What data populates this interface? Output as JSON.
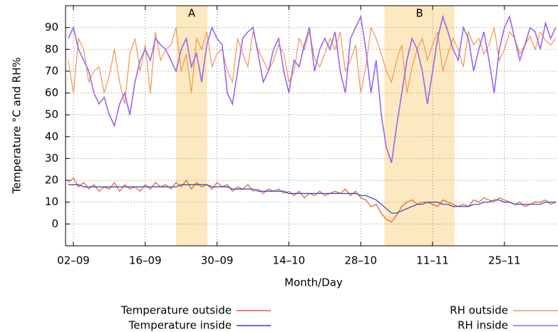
{
  "chart_data": {
    "type": "line",
    "xlabel": "Month/Day",
    "ylabel": "Temperature °C and RH%",
    "annotations": [
      "A",
      "B"
    ],
    "categories": [
      null,
      "02–09",
      null,
      null,
      null,
      null,
      null,
      null,
      null,
      null,
      null,
      null,
      null,
      null,
      null,
      "16–09",
      null,
      null,
      null,
      null,
      null,
      null,
      null,
      null,
      null,
      null,
      null,
      null,
      null,
      "30–09",
      null,
      null,
      null,
      null,
      null,
      null,
      null,
      null,
      null,
      null,
      null,
      null,
      null,
      "14–10",
      null,
      null,
      null,
      null,
      null,
      null,
      null,
      null,
      null,
      null,
      null,
      null,
      null,
      "28–10",
      null,
      null,
      null,
      null,
      null,
      null,
      null,
      null,
      null,
      null,
      null,
      null,
      null,
      "11–11",
      null,
      null,
      null,
      null,
      null,
      null,
      null,
      null,
      null,
      null,
      null,
      null,
      null,
      "25–11",
      null,
      null,
      null,
      null,
      null,
      null,
      null,
      null,
      null,
      null
    ],
    "ylim": [
      -10,
      100
    ],
    "yticks": [
      0,
      10,
      20,
      30,
      40,
      50,
      60,
      70,
      80,
      90
    ],
    "grid": true,
    "series": [
      {
        "name": "Temperature outside",
        "color": "#f05a28",
        "legend": "bottom-left",
        "values": [
          19,
          21,
          17,
          19,
          16,
          18,
          15,
          17,
          16,
          19,
          15,
          18,
          16,
          17,
          15,
          18,
          16,
          19,
          17,
          18,
          16,
          19,
          17,
          20,
          16,
          19,
          17,
          18,
          16,
          19,
          17,
          18,
          15,
          17,
          16,
          18,
          15,
          16,
          14,
          16,
          15,
          16,
          14,
          15,
          13,
          15,
          12,
          14,
          13,
          15,
          13,
          14,
          15,
          14,
          16,
          13,
          15,
          12,
          11,
          8,
          9,
          5,
          2,
          1,
          4,
          8,
          10,
          11,
          9,
          10,
          10,
          9,
          8,
          11,
          10,
          9,
          8,
          9,
          8,
          11,
          10,
          12,
          11,
          10,
          12,
          11,
          10,
          9,
          10,
          8,
          9,
          10,
          10,
          11,
          9,
          10
        ]
      },
      {
        "name": "Temperature inside",
        "color": "#2844c0",
        "legend": "bottom-left",
        "values": [
          18,
          18,
          18,
          17,
          17,
          17,
          17,
          17,
          17,
          17,
          17,
          17,
          17,
          17,
          17,
          17,
          17,
          17,
          17,
          17,
          17,
          17,
          18,
          18,
          18,
          18,
          18,
          18,
          17,
          17,
          17,
          17,
          16,
          16,
          16,
          16,
          16,
          15,
          15,
          15,
          15,
          15,
          15,
          14,
          14,
          14,
          14,
          14,
          14,
          14,
          14,
          14,
          14,
          14,
          14,
          14,
          14,
          13,
          13,
          12,
          11,
          9,
          7,
          5,
          5,
          6,
          7,
          8,
          9,
          9,
          10,
          10,
          10,
          9,
          9,
          8,
          8,
          8,
          8,
          9,
          9,
          10,
          10,
          11,
          11,
          10,
          10,
          9,
          9,
          9,
          9,
          9,
          9,
          10,
          10,
          10
        ]
      },
      {
        "name": "RH outside",
        "color": "#f5944f",
        "legend": "bottom-right",
        "values": [
          75,
          60,
          85,
          80,
          65,
          70,
          72,
          60,
          68,
          80,
          65,
          55,
          78,
          85,
          70,
          82,
          60,
          88,
          75,
          80,
          82,
          90,
          70,
          78,
          60,
          85,
          80,
          88,
          72,
          78,
          80,
          70,
          65,
          85,
          78,
          72,
          88,
          80,
          75,
          70,
          75,
          82,
          78,
          65,
          70,
          85,
          80,
          88,
          76,
          72,
          78,
          85,
          80,
          88,
          70,
          75,
          82,
          60,
          72,
          90,
          85,
          78,
          70,
          65,
          75,
          82,
          60,
          72,
          80,
          85,
          75,
          82,
          88,
          70,
          78,
          85,
          80,
          72,
          88,
          82,
          85,
          78,
          82,
          90,
          75,
          80,
          88,
          85,
          78,
          82,
          86,
          80,
          88,
          84,
          82,
          85
        ]
      },
      {
        "name": "RH inside",
        "color": "#9966ee",
        "legend": "bottom-right",
        "values": [
          85,
          90,
          80,
          75,
          70,
          60,
          55,
          58,
          50,
          45,
          55,
          60,
          50,
          65,
          75,
          80,
          75,
          85,
          82,
          80,
          75,
          70,
          80,
          85,
          72,
          78,
          65,
          82,
          90,
          85,
          82,
          60,
          55,
          70,
          85,
          88,
          90,
          78,
          65,
          70,
          80,
          85,
          70,
          60,
          75,
          72,
          82,
          90,
          70,
          80,
          85,
          80,
          88,
          70,
          60,
          85,
          90,
          95,
          80,
          60,
          75,
          50,
          35,
          28,
          45,
          60,
          75,
          85,
          80,
          70,
          55,
          70,
          85,
          95,
          88,
          80,
          75,
          90,
          85,
          70,
          80,
          88,
          75,
          60,
          80,
          90,
          95,
          85,
          75,
          82,
          90,
          88,
          80,
          92,
          85,
          90
        ]
      }
    ]
  }
}
